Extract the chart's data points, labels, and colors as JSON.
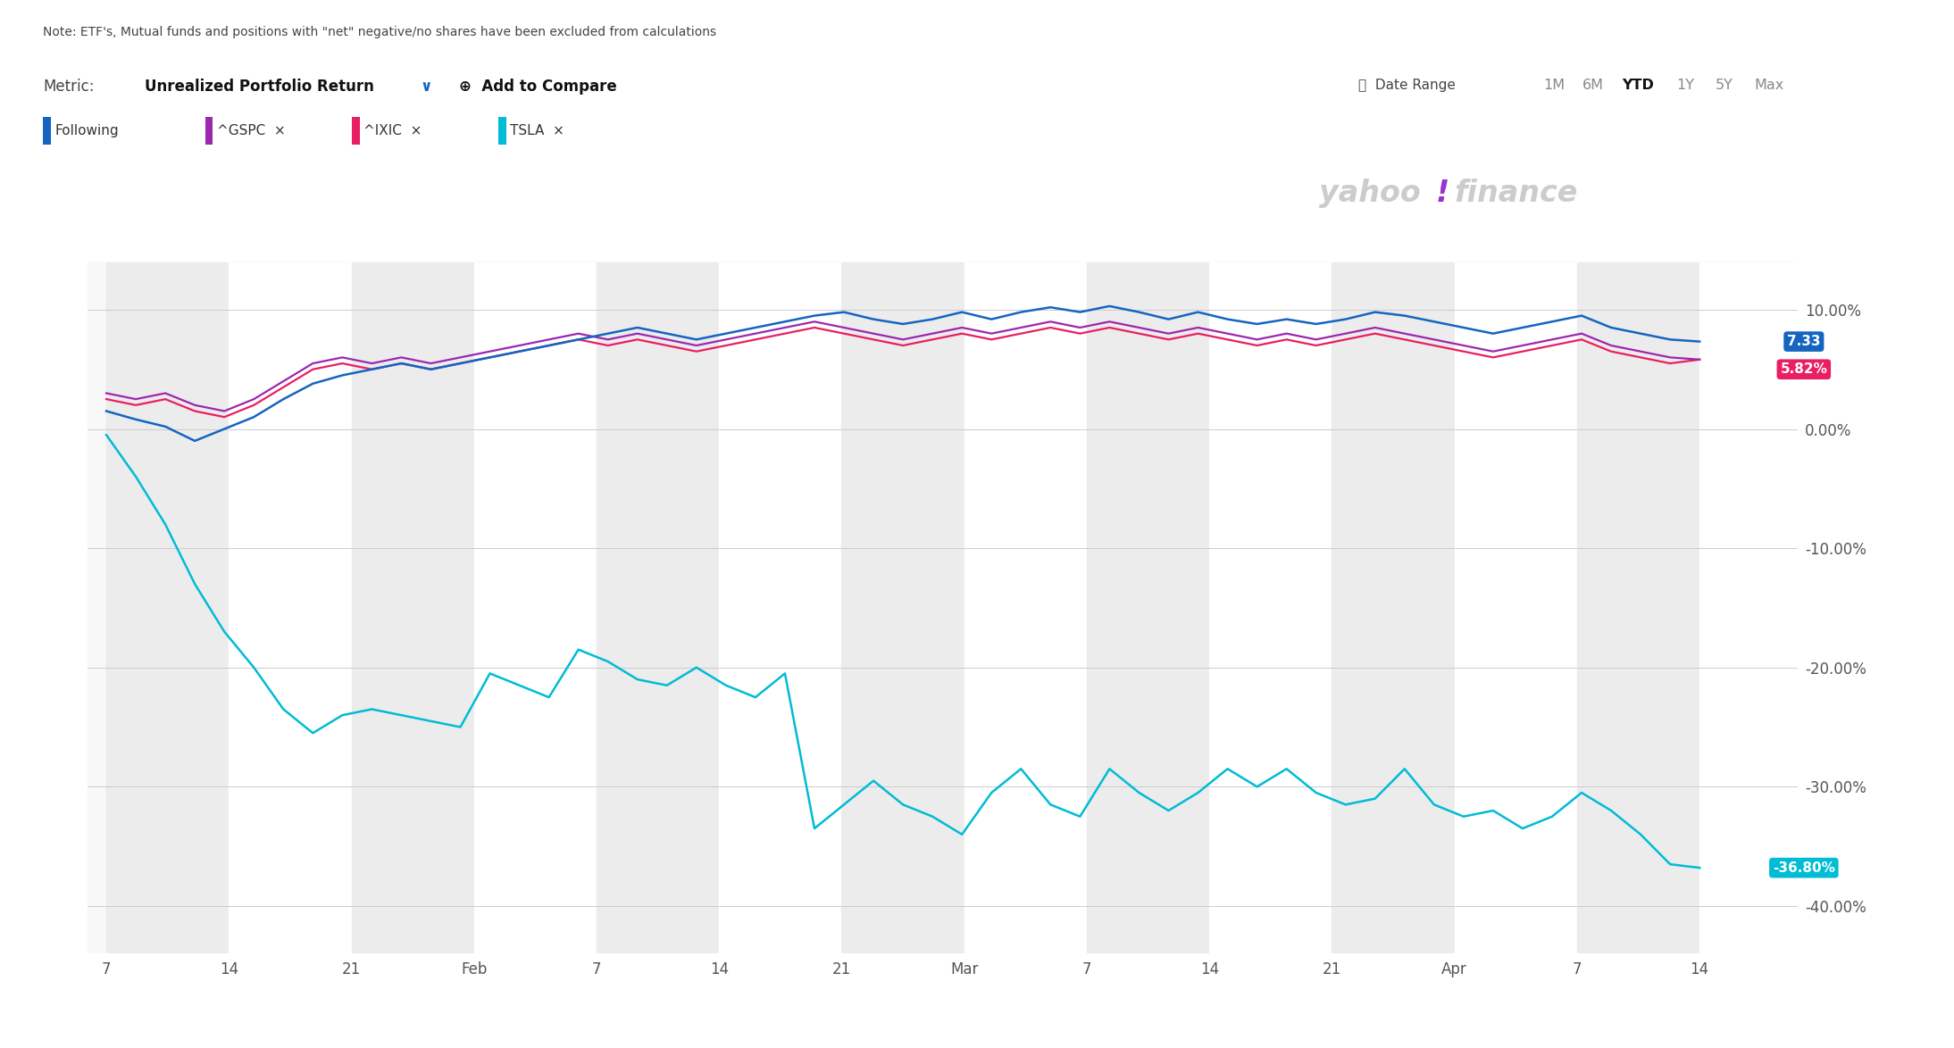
{
  "note": "Note: ETF's, Mutual funds and positions with \"net\" negative/no shares have been excluded from calculations",
  "bg_color": "#ffffff",
  "chart_bg_color": "#f8f8f8",
  "stripe_light": "#ececec",
  "grid_color": "#cccccc",
  "x_tick_labels": [
    "7",
    "14",
    "21",
    "Feb",
    "7",
    "14",
    "21",
    "Mar",
    "7",
    "14",
    "21",
    "Apr",
    "7",
    "14"
  ],
  "y_tick_labels": [
    "10.00%",
    "0.00%",
    "-10.00%",
    "-20.00%",
    "-30.00%",
    "-40.00%"
  ],
  "y_values": [
    10,
    0,
    -10,
    -20,
    -30,
    -40
  ],
  "ylim": [
    -44,
    14
  ],
  "following_color": "#1565c0",
  "gspc_color": "#9c27b0",
  "ixic_color": "#e91e63",
  "tsla_color": "#00bcd4",
  "following_y": [
    1.5,
    0.8,
    0.2,
    -1.0,
    0.0,
    1.0,
    2.5,
    3.8,
    4.5,
    5.0,
    5.5,
    5.0,
    5.5,
    6.0,
    6.5,
    7.0,
    7.5,
    8.0,
    8.5,
    8.0,
    7.5,
    8.0,
    8.5,
    9.0,
    9.5,
    9.8,
    9.2,
    8.8,
    9.2,
    9.8,
    9.2,
    9.8,
    10.2,
    9.8,
    10.3,
    9.8,
    9.2,
    9.8,
    9.2,
    8.8,
    9.2,
    8.8,
    9.2,
    9.8,
    9.5,
    9.0,
    8.5,
    8.0,
    8.5,
    9.0,
    9.5,
    8.5,
    8.0,
    7.5,
    7.33
  ],
  "gspc_y": [
    3.0,
    2.5,
    3.0,
    2.0,
    1.5,
    2.5,
    4.0,
    5.5,
    6.0,
    5.5,
    6.0,
    5.5,
    6.0,
    6.5,
    7.0,
    7.5,
    8.0,
    7.5,
    8.0,
    7.5,
    7.0,
    7.5,
    8.0,
    8.5,
    9.0,
    8.5,
    8.0,
    7.5,
    8.0,
    8.5,
    8.0,
    8.5,
    9.0,
    8.5,
    9.0,
    8.5,
    8.0,
    8.5,
    8.0,
    7.5,
    8.0,
    7.5,
    8.0,
    8.5,
    8.0,
    7.5,
    7.0,
    6.5,
    7.0,
    7.5,
    8.0,
    7.0,
    6.5,
    6.0,
    5.82
  ],
  "ixic_y": [
    2.5,
    2.0,
    2.5,
    1.5,
    1.0,
    2.0,
    3.5,
    5.0,
    5.5,
    5.0,
    5.5,
    5.0,
    5.5,
    6.0,
    6.5,
    7.0,
    7.5,
    7.0,
    7.5,
    7.0,
    6.5,
    7.0,
    7.5,
    8.0,
    8.5,
    8.0,
    7.5,
    7.0,
    7.5,
    8.0,
    7.5,
    8.0,
    8.5,
    8.0,
    8.5,
    8.0,
    7.5,
    8.0,
    7.5,
    7.0,
    7.5,
    7.0,
    7.5,
    8.0,
    7.5,
    7.0,
    6.5,
    6.0,
    6.5,
    7.0,
    7.5,
    6.5,
    6.0,
    5.5,
    5.82
  ],
  "tsla_y": [
    -0.5,
    -4.0,
    -8.0,
    -13.0,
    -17.0,
    -20.0,
    -23.5,
    -25.5,
    -24.0,
    -23.5,
    -24.0,
    -24.5,
    -25.0,
    -20.5,
    -21.5,
    -22.5,
    -18.5,
    -19.5,
    -21.0,
    -21.5,
    -20.0,
    -21.5,
    -22.5,
    -20.5,
    -33.5,
    -31.5,
    -29.5,
    -31.5,
    -32.5,
    -34.0,
    -30.5,
    -28.5,
    -31.5,
    -32.5,
    -28.5,
    -30.5,
    -32.0,
    -30.5,
    -28.5,
    -30.0,
    -28.5,
    -30.5,
    -31.5,
    -31.0,
    -28.5,
    -31.5,
    -32.5,
    -32.0,
    -33.5,
    -32.5,
    -30.5,
    -32.0,
    -34.0,
    -36.5,
    -36.8
  ]
}
